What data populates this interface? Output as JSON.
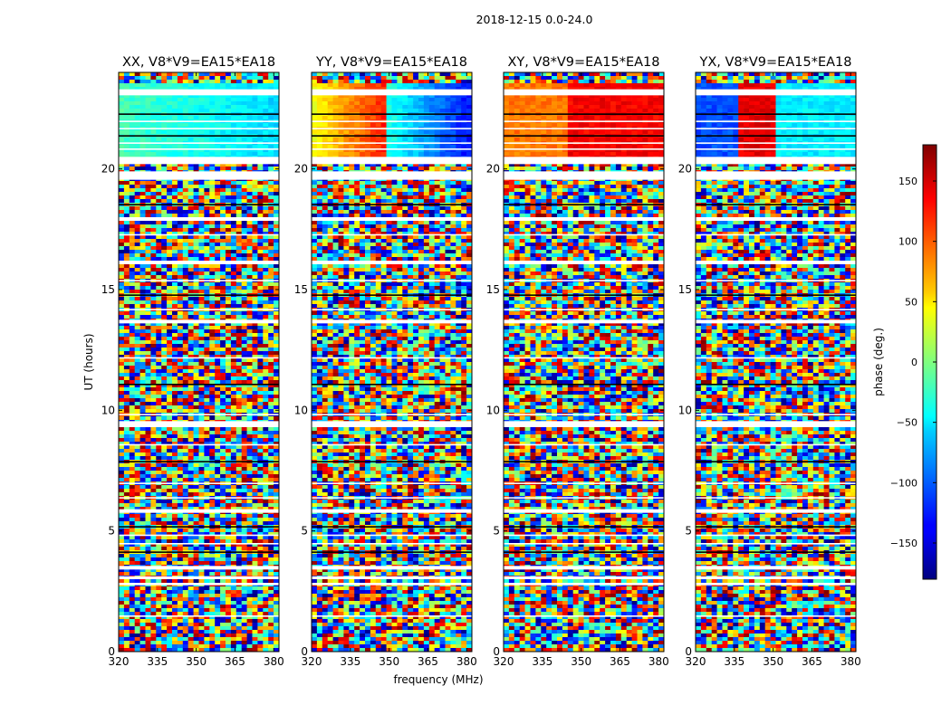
{
  "figure": {
    "suptitle": "2018-12-15 0.0-24.0",
    "xlabel": "frequency (MHz)",
    "ylabel": "UT (hours)",
    "colorbar": {
      "label": "phase (deg.)",
      "ticks": [
        "150",
        "100",
        "50",
        "0",
        "−50",
        "−100",
        "−150"
      ],
      "tick_values": [
        150,
        100,
        50,
        0,
        -50,
        -100,
        -150
      ],
      "range": [
        -180,
        180
      ],
      "colormap": "jet"
    }
  },
  "panels": [
    {
      "title": "XX, V8*V9=EA15*EA18"
    },
    {
      "title": "YY, V8*V9=EA15*EA18"
    },
    {
      "title": "XY, V8*V9=EA15*EA18"
    },
    {
      "title": "YX, V8*V9=EA15*EA18"
    }
  ],
  "axes": {
    "x_ticks": [
      "320",
      "335",
      "350",
      "365",
      "380"
    ],
    "x_tick_values": [
      320,
      335,
      350,
      365,
      380
    ],
    "xlim": [
      320,
      382
    ],
    "y_ticks": [
      "0",
      "5",
      "10",
      "15",
      "20"
    ],
    "y_tick_values": [
      0,
      5,
      10,
      15,
      20
    ],
    "ylim": [
      0,
      24
    ]
  },
  "chart_data": [
    {
      "type": "heatmap",
      "title": "XX, V8*V9=EA15*EA18",
      "xlabel": "",
      "ylabel": "UT (hours)",
      "x_range": [
        320,
        382
      ],
      "y_range": [
        0,
        24
      ],
      "value_range": [
        -180,
        180
      ],
      "notes": "coherent blue/cyan phase 20.3-23.5 h; noisy phase elsewhere"
    },
    {
      "type": "heatmap",
      "title": "YY, V8*V9=EA15*EA18",
      "xlabel": "frequency (MHz)",
      "ylabel": "",
      "x_range": [
        320,
        382
      ],
      "y_range": [
        0,
        24
      ],
      "value_range": [
        -180,
        180
      ],
      "notes": "coherent phase ramp 20.3-23.5 h (yellow to red near 345 MHz, cyan to blue toward 380 MHz); noisy phase elsewhere"
    },
    {
      "type": "heatmap",
      "title": "XY, V8*V9=EA15*EA18",
      "xlabel": "",
      "ylabel": "",
      "x_range": [
        320,
        382
      ],
      "y_range": [
        0,
        24
      ],
      "value_range": [
        -180,
        180
      ],
      "notes": "orange/red coherent phase 20.3-23.5 h; noisy phase elsewhere"
    },
    {
      "type": "heatmap",
      "title": "YX, V8*V9=EA15*EA18",
      "xlabel": "",
      "ylabel": "",
      "x_range": [
        320,
        382
      ],
      "y_range": [
        0,
        24
      ],
      "value_range": [
        -180,
        180
      ],
      "notes": "blue/red/cyan coherent phase 20.3-23.5 h; noisy phase elsewhere"
    }
  ]
}
